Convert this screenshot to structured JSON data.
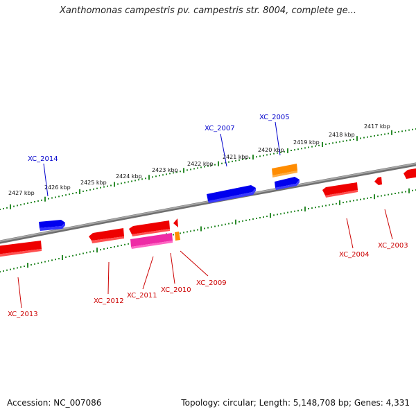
{
  "title": "Xanthomonas campestris pv. campestris str. 8004, complete ge...",
  "footer": {
    "accession": "Accession: NC_007086",
    "summary": "Topology: circular; Length: 5,148,708 bp; Genes: 4,331"
  },
  "colors": {
    "backbone": "#808080",
    "tick": "#2a8a2a",
    "forward_gene": "#0000ee",
    "reverse_gene": "#ee0000",
    "pink_gene": "#ee2aa5",
    "orange_gene": "#ff8c00",
    "label_forward": "#0000cc",
    "label_reverse": "#cc0000"
  },
  "scale": {
    "unit": "kbp",
    "labels": [
      "2427 kbp",
      "2426 kbp",
      "2425 kbp",
      "2424 kbp",
      "2423 kbp",
      "2422 kbp",
      "2421 kbp",
      "2420 kbp",
      "2419 kbp",
      "2418 kbp",
      "2417 kbp"
    ]
  },
  "labeled_genes": [
    {
      "name": "XC_2014",
      "strand": "forward"
    },
    {
      "name": "XC_2007",
      "strand": "forward"
    },
    {
      "name": "XC_2005",
      "strand": "forward"
    },
    {
      "name": "XC_2013",
      "strand": "reverse"
    },
    {
      "name": "XC_2012",
      "strand": "reverse"
    },
    {
      "name": "XC_2011",
      "strand": "reverse"
    },
    {
      "name": "XC_2010",
      "strand": "reverse"
    },
    {
      "name": "XC_2009",
      "strand": "reverse"
    },
    {
      "name": "XC_2004",
      "strand": "reverse"
    },
    {
      "name": "XC_2003",
      "strand": "reverse"
    }
  ]
}
